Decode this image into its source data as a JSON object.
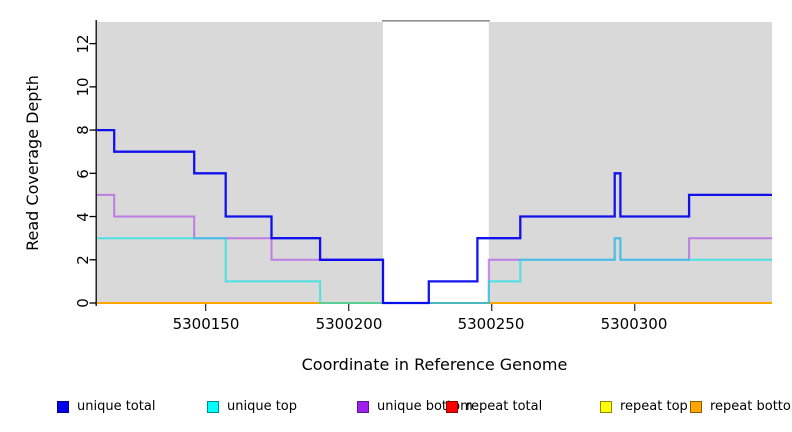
{
  "figure": {
    "xlabel": "Coordinate in Reference Genome",
    "ylabel": "Read Coverage Depth",
    "x_ticks": [
      "5300150",
      "5300200",
      "5300250",
      "5300300"
    ],
    "y_ticks": [
      "0",
      "2",
      "4",
      "6",
      "8",
      "10",
      "12"
    ],
    "panel_bg": "#d9d9d9",
    "masked_region_color": "#ffffff"
  },
  "chart_data": {
    "type": "line",
    "subtype": "step",
    "title": "",
    "xlabel": "Coordinate in Reference Genome",
    "ylabel": "Read Coverage Depth",
    "xlim": [
      5300112,
      5300348
    ],
    "ylim": [
      0,
      13
    ],
    "x_tick_values": [
      5300150,
      5300200,
      5300250,
      5300300
    ],
    "y_tick_values": [
      0,
      2,
      4,
      6,
      8,
      10,
      12
    ],
    "grid": false,
    "legend_position": "bottom",
    "panel_background": "#d9d9d9",
    "masked_region": {
      "from": 5300212,
      "to": 5300249
    },
    "series": [
      {
        "name": "repeat total",
        "color": "#ee0000",
        "opacity": 1.0,
        "width": 2,
        "steps": [
          [
            5300112,
            0
          ]
        ],
        "end": 5300348
      },
      {
        "name": "repeat top",
        "color": "#ffff00",
        "opacity": 1.0,
        "width": 2,
        "steps": [
          [
            5300112,
            0
          ]
        ],
        "end": 5300348
      },
      {
        "name": "repeat bottom",
        "color": "#ffa500",
        "opacity": 1.0,
        "width": 2,
        "steps": [
          [
            5300112,
            0
          ]
        ],
        "end": 5300348
      },
      {
        "name": "unique bottom",
        "color": "#a020f0",
        "opacity": 0.5,
        "width": 2,
        "steps": [
          [
            5300112,
            5
          ],
          [
            5300118,
            4
          ],
          [
            5300146,
            3
          ],
          [
            5300173,
            2
          ],
          [
            5300212,
            0
          ],
          [
            5300249,
            2
          ],
          [
            5300293,
            3
          ],
          [
            5300295,
            2
          ],
          [
            5300319,
            3
          ]
        ],
        "end": 5300348
      },
      {
        "name": "unique top",
        "color": "#00e5e5",
        "opacity": 0.65,
        "width": 2,
        "steps": [
          [
            5300112,
            3
          ],
          [
            5300157,
            1
          ],
          [
            5300190,
            0
          ],
          [
            5300249,
            1
          ],
          [
            5300260,
            2
          ],
          [
            5300293,
            3
          ],
          [
            5300295,
            2
          ]
        ],
        "end": 5300348
      },
      {
        "name": "unique total",
        "color": "#0000ee",
        "opacity": 0.92,
        "width": 2.3,
        "steps": [
          [
            5300112,
            8
          ],
          [
            5300118,
            7
          ],
          [
            5300146,
            6
          ],
          [
            5300157,
            4
          ],
          [
            5300173,
            3
          ],
          [
            5300190,
            2
          ],
          [
            5300212,
            0
          ],
          [
            5300228,
            1
          ],
          [
            5300245,
            3
          ],
          [
            5300260,
            4
          ],
          [
            5300293,
            6
          ],
          [
            5300295,
            4
          ],
          [
            5300319,
            5
          ]
        ],
        "end": 5300348
      }
    ]
  },
  "legend": {
    "items": [
      {
        "label": "unique total",
        "fill": "#0000ee",
        "border": "#00008b"
      },
      {
        "label": "unique top",
        "fill": "#00ffff",
        "border": "#008b8b"
      },
      {
        "label": "unique bottom",
        "fill": "#a020f0",
        "border": "#551a8b"
      },
      {
        "label": "repeat total",
        "fill": "#ff0000",
        "border": "#8b0000"
      },
      {
        "label": "repeat top",
        "fill": "#ffff00",
        "border": "#8b8b00"
      },
      {
        "label": "repeat bottom",
        "fill": "#ffa500",
        "border": "#8b5a00"
      }
    ]
  }
}
